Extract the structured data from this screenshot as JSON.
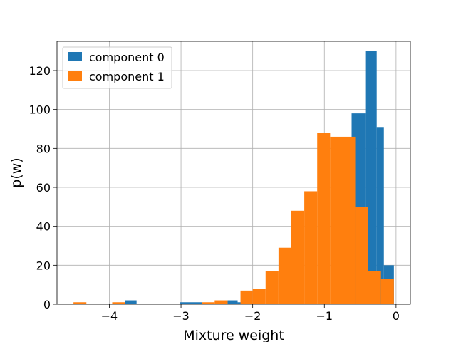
{
  "chart_data": {
    "type": "bar",
    "subtype": "histogram",
    "xlabel": "Mixture weight",
    "ylabel": "p(w)",
    "xlim": [
      -4.73,
      0.2
    ],
    "ylim": [
      0,
      135
    ],
    "xticks": [
      -4,
      -3,
      -2,
      -1,
      0
    ],
    "xtick_labels": [
      "−4",
      "−3",
      "−2",
      "−1",
      "0"
    ],
    "yticks": [
      0,
      20,
      40,
      60,
      80,
      100,
      120
    ],
    "ytick_labels": [
      "0",
      "20",
      "40",
      "60",
      "80",
      "100",
      "120"
    ],
    "grid": true,
    "legend_position": "upper-left",
    "series": [
      {
        "name": "component 0",
        "color": "#1f77b4",
        "bins": [
          {
            "x0": -3.78,
            "x1": -3.62,
            "value": 2
          },
          {
            "x0": -3.01,
            "x1": -2.71,
            "value": 1
          },
          {
            "x0": -2.35,
            "x1": -2.21,
            "value": 2
          },
          {
            "x0": -2.21,
            "x1": -2.16,
            "value": 1
          },
          {
            "x0": -0.62,
            "x1": -0.43,
            "value": 98
          },
          {
            "x0": -0.43,
            "x1": -0.27,
            "value": 130
          },
          {
            "x0": -0.27,
            "x1": -0.17,
            "value": 91
          },
          {
            "x0": -0.17,
            "x1": -0.03,
            "value": 20
          }
        ]
      },
      {
        "name": "component 1",
        "color": "#ff7f0e",
        "bins": [
          {
            "x0": -4.5,
            "x1": -4.32,
            "value": 1
          },
          {
            "x0": -3.96,
            "x1": -3.78,
            "value": 1
          },
          {
            "x0": -2.71,
            "x1": -2.53,
            "value": 1
          },
          {
            "x0": -2.53,
            "x1": -2.35,
            "value": 2
          },
          {
            "x0": -2.17,
            "x1": -2.0,
            "value": 7
          },
          {
            "x0": -2.0,
            "x1": -1.82,
            "value": 8
          },
          {
            "x0": -1.82,
            "x1": -1.64,
            "value": 17
          },
          {
            "x0": -1.64,
            "x1": -1.46,
            "value": 29
          },
          {
            "x0": -1.46,
            "x1": -1.28,
            "value": 48
          },
          {
            "x0": -1.28,
            "x1": -1.1,
            "value": 58
          },
          {
            "x0": -1.1,
            "x1": -0.92,
            "value": 88
          },
          {
            "x0": -0.92,
            "x1": -0.57,
            "value": 86
          },
          {
            "x0": -0.57,
            "x1": -0.39,
            "value": 50
          },
          {
            "x0": -0.39,
            "x1": -0.21,
            "value": 17
          },
          {
            "x0": -0.21,
            "x1": -0.03,
            "value": 13
          }
        ]
      }
    ]
  }
}
